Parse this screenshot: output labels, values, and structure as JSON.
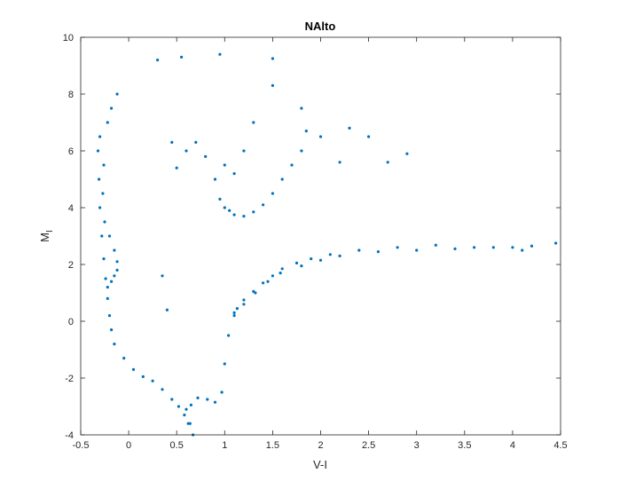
{
  "chart_data": {
    "type": "scatter",
    "title": "NAlto",
    "xlabel": "V-I",
    "ylabel": {
      "main": "M",
      "sub": "I"
    },
    "xlim": [
      -0.5,
      4.5
    ],
    "ylim": [
      -4,
      10
    ],
    "xticks": [
      "-0.5",
      "0",
      "0.5",
      "1",
      "1.5",
      "2",
      "2.5",
      "3",
      "3.5",
      "4",
      "4.5"
    ],
    "yticks": [
      "-4",
      "-2",
      "0",
      "2",
      "4",
      "6",
      "8",
      "10"
    ],
    "grid": false,
    "legend": "none",
    "marker_color": "#0072BD",
    "series": [
      {
        "values": [
          {
            "x": 0.67,
            "y": -4.0
          },
          {
            "x": 0.64,
            "y": -3.6
          },
          {
            "x": 0.58,
            "y": -3.3
          },
          {
            "x": 0.52,
            "y": -3.0
          },
          {
            "x": 0.45,
            "y": -2.75
          },
          {
            "x": 0.35,
            "y": -2.4
          },
          {
            "x": 0.25,
            "y": -2.1
          },
          {
            "x": 0.15,
            "y": -1.95
          },
          {
            "x": 0.05,
            "y": -1.7
          },
          {
            "x": -0.05,
            "y": -1.3
          },
          {
            "x": -0.15,
            "y": -0.8
          },
          {
            "x": -0.18,
            "y": -0.3
          },
          {
            "x": -0.2,
            "y": 0.2
          },
          {
            "x": -0.22,
            "y": 0.8
          },
          {
            "x": -0.24,
            "y": 1.5
          },
          {
            "x": -0.26,
            "y": 2.2
          },
          {
            "x": -0.28,
            "y": 3.0
          },
          {
            "x": -0.3,
            "y": 4.0
          },
          {
            "x": -0.31,
            "y": 5.0
          },
          {
            "x": -0.32,
            "y": 6.0
          },
          {
            "x": -0.3,
            "y": 6.5
          },
          {
            "x": -0.22,
            "y": 7.0
          },
          {
            "x": -0.18,
            "y": 7.5
          },
          {
            "x": -0.12,
            "y": 8.0
          }
        ]
      },
      {
        "values": [
          {
            "x": -0.22,
            "y": 1.2
          },
          {
            "x": -0.18,
            "y": 1.4
          },
          {
            "x": -0.15,
            "y": 1.6
          },
          {
            "x": -0.12,
            "y": 1.8
          },
          {
            "x": -0.12,
            "y": 2.1
          },
          {
            "x": -0.15,
            "y": 2.5
          },
          {
            "x": -0.2,
            "y": 3.0
          },
          {
            "x": -0.25,
            "y": 3.5
          },
          {
            "x": -0.27,
            "y": 4.5
          },
          {
            "x": -0.26,
            "y": 5.5
          }
        ]
      },
      {
        "values": [
          {
            "x": 0.62,
            "y": -3.6
          },
          {
            "x": 0.6,
            "y": -3.1
          },
          {
            "x": 0.65,
            "y": -2.95
          },
          {
            "x": 0.72,
            "y": -2.7
          },
          {
            "x": 0.82,
            "y": -2.75
          },
          {
            "x": 0.9,
            "y": -2.85
          },
          {
            "x": 0.97,
            "y": -2.5
          },
          {
            "x": 1.0,
            "y": -1.5
          },
          {
            "x": 1.04,
            "y": -0.5
          },
          {
            "x": 1.1,
            "y": 0.3
          },
          {
            "x": 1.2,
            "y": 0.6
          },
          {
            "x": 1.32,
            "y": 1.0
          },
          {
            "x": 1.45,
            "y": 1.4
          },
          {
            "x": 1.58,
            "y": 1.7
          },
          {
            "x": 1.8,
            "y": 1.95
          },
          {
            "x": 2.0,
            "y": 2.15
          },
          {
            "x": 2.2,
            "y": 2.3
          },
          {
            "x": 2.6,
            "y": 2.45
          },
          {
            "x": 3.0,
            "y": 2.5
          },
          {
            "x": 3.4,
            "y": 2.55
          },
          {
            "x": 3.8,
            "y": 2.6
          },
          {
            "x": 4.1,
            "y": 2.5
          }
        ]
      },
      {
        "values": [
          {
            "x": 1.1,
            "y": 0.2
          },
          {
            "x": 1.13,
            "y": 0.45
          },
          {
            "x": 1.2,
            "y": 0.75
          },
          {
            "x": 1.3,
            "y": 1.05
          },
          {
            "x": 1.4,
            "y": 1.35
          },
          {
            "x": 1.5,
            "y": 1.6
          },
          {
            "x": 1.6,
            "y": 1.85
          },
          {
            "x": 1.75,
            "y": 2.05
          },
          {
            "x": 1.9,
            "y": 2.2
          },
          {
            "x": 2.1,
            "y": 2.35
          },
          {
            "x": 2.4,
            "y": 2.5
          },
          {
            "x": 2.8,
            "y": 2.6
          },
          {
            "x": 3.2,
            "y": 2.68
          },
          {
            "x": 3.6,
            "y": 2.6
          },
          {
            "x": 4.0,
            "y": 2.6
          },
          {
            "x": 4.2,
            "y": 2.65
          },
          {
            "x": 4.45,
            "y": 2.75
          }
        ]
      },
      {
        "values": [
          {
            "x": 0.95,
            "y": 4.3
          },
          {
            "x": 1.0,
            "y": 4.0
          },
          {
            "x": 1.05,
            "y": 3.9
          },
          {
            "x": 1.1,
            "y": 3.75
          },
          {
            "x": 1.2,
            "y": 3.7
          },
          {
            "x": 1.3,
            "y": 3.85
          },
          {
            "x": 1.4,
            "y": 4.1
          },
          {
            "x": 1.5,
            "y": 4.5
          },
          {
            "x": 1.6,
            "y": 5.0
          },
          {
            "x": 1.7,
            "y": 5.5
          },
          {
            "x": 1.8,
            "y": 6.0
          },
          {
            "x": 1.85,
            "y": 6.7
          },
          {
            "x": 1.8,
            "y": 7.5
          },
          {
            "x": 1.5,
            "y": 8.3
          },
          {
            "x": 1.3,
            "y": 7.0
          },
          {
            "x": 1.2,
            "y": 6.0
          },
          {
            "x": 1.1,
            "y": 5.2
          },
          {
            "x": 1.0,
            "y": 5.5
          },
          {
            "x": 0.9,
            "y": 5.0
          },
          {
            "x": 0.8,
            "y": 5.8
          },
          {
            "x": 0.7,
            "y": 6.3
          },
          {
            "x": 0.6,
            "y": 6.0
          },
          {
            "x": 0.5,
            "y": 5.4
          },
          {
            "x": 0.45,
            "y": 6.3
          },
          {
            "x": 2.0,
            "y": 6.5
          },
          {
            "x": 2.3,
            "y": 6.8
          },
          {
            "x": 2.5,
            "y": 6.5
          },
          {
            "x": 2.7,
            "y": 5.6
          },
          {
            "x": 2.9,
            "y": 5.9
          },
          {
            "x": 2.2,
            "y": 5.6
          },
          {
            "x": 0.3,
            "y": 9.2
          },
          {
            "x": 0.55,
            "y": 9.3
          },
          {
            "x": 0.95,
            "y": 9.4
          },
          {
            "x": 1.5,
            "y": 9.25
          },
          {
            "x": 0.4,
            "y": 0.4
          },
          {
            "x": 0.35,
            "y": 1.6
          }
        ]
      }
    ]
  }
}
